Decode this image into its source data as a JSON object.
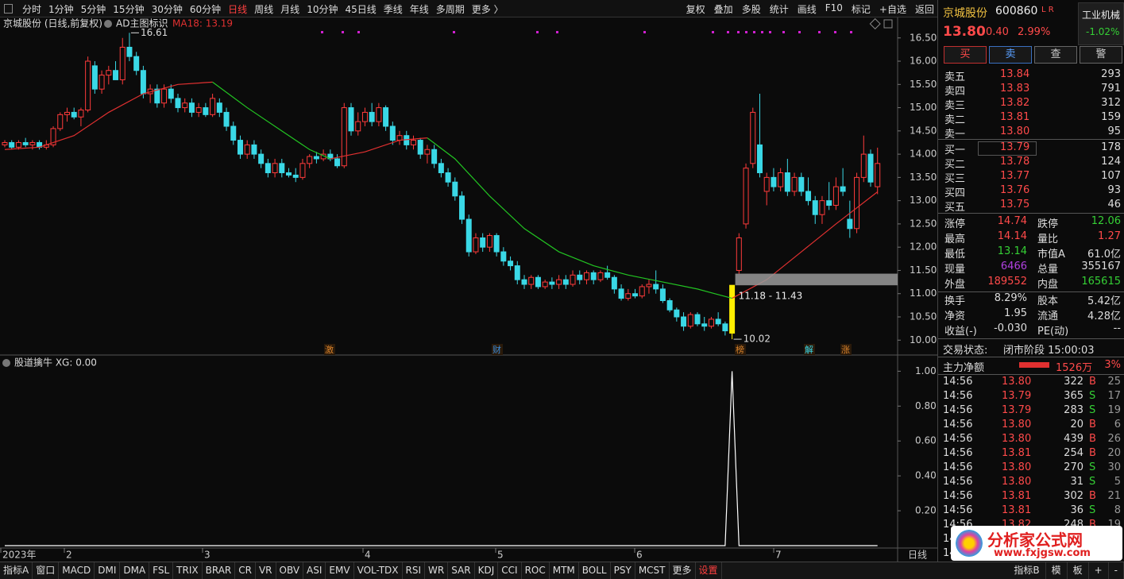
{
  "toolbar": {
    "left": [
      "分时",
      "1分钟",
      "5分钟",
      "15分钟",
      "30分钟",
      "60分钟",
      "日线",
      "周线",
      "月线",
      "10分钟",
      "45日线",
      "季线",
      "年线",
      "多周期",
      "更多 〉"
    ],
    "active": 6,
    "right": [
      "复权",
      "叠加",
      "多股",
      "统计",
      "画线",
      "F10",
      "标记",
      "+自选",
      "返回"
    ]
  },
  "main_chart": {
    "type": "candlestick",
    "title": "京城股份 (日线,前复权)",
    "indicator": "AD主图标识",
    "ma_label": "MA18: 13.19",
    "up_color": "#ff3b3b",
    "down_color": "#3ad8e6",
    "highlight_index": 105,
    "highlight_color": "#ffee00",
    "candles": [
      [
        14.2,
        14.3,
        14.15,
        14.25
      ],
      [
        14.25,
        14.3,
        14.1,
        14.15
      ],
      [
        14.15,
        14.3,
        14.1,
        14.25
      ],
      [
        14.25,
        14.35,
        14.15,
        14.2
      ],
      [
        14.2,
        14.3,
        14.1,
        14.25
      ],
      [
        14.25,
        14.3,
        14.1,
        14.15
      ],
      [
        14.15,
        14.3,
        14.1,
        14.2
      ],
      [
        14.2,
        14.6,
        14.15,
        14.55
      ],
      [
        14.55,
        14.9,
        14.5,
        14.85
      ],
      [
        14.85,
        15.0,
        14.7,
        14.9
      ],
      [
        14.9,
        15.0,
        14.75,
        14.8
      ],
      [
        14.8,
        15.0,
        14.6,
        14.95
      ],
      [
        14.95,
        16.1,
        14.9,
        16.0
      ],
      [
        15.9,
        16.0,
        15.3,
        15.4
      ],
      [
        15.4,
        15.8,
        15.3,
        15.7
      ],
      [
        15.7,
        15.9,
        15.5,
        15.8
      ],
      [
        15.8,
        16.0,
        15.6,
        15.6
      ],
      [
        15.6,
        16.5,
        15.5,
        16.3
      ],
      [
        16.3,
        16.61,
        16.0,
        16.1
      ],
      [
        16.1,
        16.2,
        15.7,
        15.8
      ],
      [
        15.8,
        15.9,
        15.2,
        15.3
      ],
      [
        15.3,
        15.5,
        15.1,
        15.4
      ],
      [
        15.4,
        15.5,
        15.0,
        15.1
      ],
      [
        15.1,
        15.5,
        15.0,
        15.4
      ],
      [
        15.4,
        15.5,
        15.1,
        15.2
      ],
      [
        15.2,
        15.3,
        14.9,
        15.0
      ],
      [
        15.0,
        15.2,
        14.9,
        15.1
      ],
      [
        15.1,
        15.2,
        14.8,
        14.9
      ],
      [
        14.9,
        15.1,
        14.8,
        15.0
      ],
      [
        15.0,
        15.1,
        14.8,
        14.85
      ],
      [
        14.85,
        15.3,
        14.8,
        15.2
      ],
      [
        15.1,
        15.2,
        14.8,
        14.9
      ],
      [
        14.9,
        15.0,
        14.5,
        14.6
      ],
      [
        14.6,
        14.7,
        14.2,
        14.3
      ],
      [
        14.3,
        14.4,
        13.9,
        14.0
      ],
      [
        14.0,
        14.3,
        13.9,
        14.2
      ],
      [
        14.2,
        14.3,
        13.9,
        14.0
      ],
      [
        14.0,
        14.1,
        13.7,
        13.8
      ],
      [
        13.8,
        13.9,
        13.5,
        13.6
      ],
      [
        13.6,
        13.9,
        13.5,
        13.8
      ],
      [
        13.8,
        13.9,
        13.5,
        13.6
      ],
      [
        13.6,
        13.7,
        13.5,
        13.55
      ],
      [
        13.55,
        13.7,
        13.4,
        13.5
      ],
      [
        13.5,
        13.9,
        13.45,
        13.8
      ],
      [
        13.8,
        14.0,
        13.7,
        13.95
      ],
      [
        13.95,
        14.05,
        13.8,
        13.9
      ],
      [
        13.9,
        14.1,
        13.85,
        14.0
      ],
      [
        14.0,
        14.1,
        13.85,
        13.9
      ],
      [
        13.9,
        14.0,
        13.7,
        13.75
      ],
      [
        13.75,
        15.1,
        13.7,
        15.0
      ],
      [
        15.0,
        15.1,
        14.4,
        14.5
      ],
      [
        14.5,
        14.9,
        14.4,
        14.7
      ],
      [
        14.7,
        15.0,
        14.6,
        14.9
      ],
      [
        14.9,
        15.1,
        14.6,
        14.7
      ],
      [
        14.7,
        15.1,
        14.6,
        15.0
      ],
      [
        15.0,
        15.05,
        14.5,
        14.6
      ],
      [
        14.6,
        14.7,
        14.2,
        14.3
      ],
      [
        14.3,
        14.5,
        14.2,
        14.4
      ],
      [
        14.4,
        14.5,
        14.1,
        14.2
      ],
      [
        14.2,
        14.4,
        14.1,
        14.3
      ],
      [
        14.3,
        14.35,
        13.9,
        14.0
      ],
      [
        14.0,
        14.2,
        13.8,
        14.1
      ],
      [
        14.1,
        14.2,
        13.7,
        13.8
      ],
      [
        13.8,
        13.9,
        13.5,
        13.6
      ],
      [
        13.6,
        13.7,
        13.3,
        13.4
      ],
      [
        13.4,
        13.5,
        13.0,
        13.1
      ],
      [
        13.1,
        13.2,
        12.5,
        12.6
      ],
      [
        12.6,
        12.7,
        11.8,
        11.9
      ],
      [
        11.9,
        12.3,
        11.85,
        12.2
      ],
      [
        12.2,
        12.3,
        11.9,
        12.0
      ],
      [
        12.0,
        12.3,
        11.9,
        12.25
      ],
      [
        12.25,
        12.3,
        11.8,
        11.9
      ],
      [
        11.9,
        12.0,
        11.6,
        11.7
      ],
      [
        11.7,
        11.8,
        11.5,
        11.6
      ],
      [
        11.6,
        11.7,
        11.2,
        11.3
      ],
      [
        11.3,
        11.4,
        11.1,
        11.2
      ],
      [
        11.2,
        11.4,
        11.1,
        11.35
      ],
      [
        11.35,
        11.4,
        11.1,
        11.15
      ],
      [
        11.15,
        11.3,
        11.1,
        11.25
      ],
      [
        11.25,
        11.35,
        11.1,
        11.2
      ],
      [
        11.2,
        11.4,
        11.1,
        11.3
      ],
      [
        11.3,
        11.4,
        11.1,
        11.2
      ],
      [
        11.2,
        11.5,
        11.15,
        11.4
      ],
      [
        11.4,
        11.5,
        11.2,
        11.3
      ],
      [
        11.3,
        11.5,
        11.2,
        11.45
      ],
      [
        11.45,
        11.5,
        11.2,
        11.3
      ],
      [
        11.3,
        11.5,
        11.25,
        11.45
      ],
      [
        11.45,
        11.6,
        11.3,
        11.35
      ],
      [
        11.35,
        11.4,
        11.0,
        11.1
      ],
      [
        11.1,
        11.2,
        10.85,
        10.9
      ],
      [
        10.9,
        11.1,
        10.85,
        11.0
      ],
      [
        11.0,
        11.1,
        10.9,
        10.95
      ],
      [
        10.95,
        11.2,
        10.9,
        11.15
      ],
      [
        11.15,
        11.3,
        11.0,
        11.2
      ],
      [
        11.2,
        11.5,
        11.0,
        11.1
      ],
      [
        11.1,
        11.2,
        10.8,
        10.85
      ],
      [
        10.85,
        10.9,
        10.6,
        10.65
      ],
      [
        10.65,
        10.7,
        10.4,
        10.5
      ],
      [
        10.5,
        10.6,
        10.2,
        10.3
      ],
      [
        10.3,
        10.6,
        10.25,
        10.55
      ],
      [
        10.55,
        10.6,
        10.3,
        10.35
      ],
      [
        10.35,
        10.5,
        10.2,
        10.3
      ],
      [
        10.3,
        10.5,
        10.25,
        10.45
      ],
      [
        10.45,
        10.6,
        10.3,
        10.35
      ],
      [
        10.35,
        10.4,
        10.1,
        10.2
      ],
      [
        10.15,
        11.18,
        10.02,
        11.18
      ],
      [
        11.5,
        12.3,
        11.43,
        12.2
      ],
      [
        12.5,
        13.8,
        12.4,
        13.7
      ],
      [
        13.8,
        15.0,
        13.7,
        14.9
      ],
      [
        14.2,
        15.3,
        13.5,
        13.6
      ],
      [
        13.2,
        13.6,
        12.9,
        13.5
      ],
      [
        13.5,
        13.7,
        13.2,
        13.3
      ],
      [
        13.3,
        13.7,
        13.2,
        13.6
      ],
      [
        13.6,
        13.9,
        13.1,
        13.2
      ],
      [
        13.2,
        13.6,
        13.1,
        13.5
      ],
      [
        13.5,
        13.6,
        13.1,
        13.2
      ],
      [
        13.2,
        13.5,
        12.9,
        13.0
      ],
      [
        13.0,
        13.1,
        12.5,
        12.7
      ],
      [
        12.7,
        13.1,
        12.5,
        13.0
      ],
      [
        13.0,
        13.4,
        12.8,
        12.9
      ],
      [
        12.9,
        13.5,
        12.8,
        13.3
      ],
      [
        13.3,
        13.7,
        13.1,
        13.2
      ],
      [
        12.6,
        13.0,
        12.2,
        12.4
      ],
      [
        12.4,
        13.6,
        12.3,
        13.5
      ],
      [
        13.5,
        14.4,
        13.4,
        14.0
      ],
      [
        14.0,
        14.1,
        13.3,
        13.4
      ],
      [
        13.3,
        14.14,
        13.14,
        13.8
      ]
    ],
    "ma": {
      "x": [
        0,
        5,
        10,
        15,
        20,
        25,
        30,
        35,
        40,
        44,
        47,
        52,
        57,
        61,
        65,
        70,
        75,
        80,
        85,
        90,
        95,
        100,
        105,
        110,
        115,
        120,
        126
      ],
      "series": [
        {
          "color": "#e03030",
          "values": [
            14.1,
            14.15,
            14.4,
            14.9,
            15.3,
            15.5,
            15.55,
            null,
            null,
            null,
            13.9,
            14.05,
            14.3,
            14.35,
            null,
            null,
            null,
            null,
            null,
            null,
            null,
            null,
            10.9,
            11.3,
            11.9,
            12.5,
            13.19
          ]
        },
        {
          "color": "#22c422",
          "values": [
            null,
            null,
            null,
            null,
            null,
            null,
            15.55,
            15.0,
            14.5,
            14.1,
            13.9,
            null,
            null,
            14.35,
            13.9,
            13.1,
            12.4,
            11.9,
            11.6,
            11.4,
            11.25,
            11.1,
            10.9,
            null,
            null,
            null,
            null
          ]
        }
      ]
    },
    "ylim": [
      9.68,
      16.94
    ],
    "yticks": [
      {
        "value": 16.5,
        "label": "16.50"
      },
      {
        "value": 16,
        "label": "16.00"
      },
      {
        "value": 15.5,
        "label": "15.50"
      },
      {
        "value": 15,
        "label": "15.00"
      },
      {
        "value": 14.5,
        "label": "14.50"
      },
      {
        "value": 14,
        "label": "14.00"
      },
      {
        "value": 13.5,
        "label": "13.50"
      },
      {
        "value": 13,
        "label": "13.00"
      },
      {
        "value": 12.5,
        "label": "12.50"
      },
      {
        "value": 12,
        "label": "12.00"
      },
      {
        "value": 11.5,
        "label": "11.50"
      },
      {
        "value": 11,
        "label": "11.00"
      },
      {
        "value": 10.5,
        "label": "10.50"
      },
      {
        "value": 10,
        "label": "10.00"
      }
    ],
    "annotations": [
      {
        "index": 18,
        "value": 16.61
      },
      {
        "index": 105,
        "value": 10.02
      }
    ],
    "gap": {
      "label": "11.18 - 11.43",
      "low": 11.18,
      "high": 11.43
    },
    "events": [
      "激",
      "财",
      "榜",
      "解",
      "涨"
    ]
  },
  "sub_chart": {
    "type": "line",
    "title": "股道擒牛 XG: 0.00",
    "color": "#ffffff",
    "x": [
      0,
      104,
      105,
      106,
      126
    ],
    "values": [
      0,
      0,
      1,
      0,
      0
    ],
    "ylim": [
      0,
      1.07
    ],
    "yticks": [
      {
        "value": 1,
        "label": "1.00"
      },
      {
        "value": 0.8,
        "label": "0.80"
      },
      {
        "value": 0.6,
        "label": "0.60"
      },
      {
        "value": 0.4,
        "label": "0.40"
      },
      {
        "value": 0.2,
        "label": "0.20"
      }
    ]
  },
  "date_axis": {
    "labels": [
      "2023年",
      "2",
      "3",
      "4",
      "5",
      "6",
      "7"
    ],
    "period": "日线"
  },
  "bottom_tabs": {
    "left": [
      "指标A",
      "窗口",
      "MACD",
      "DMI",
      "DMA",
      "FSL",
      "TRIX",
      "BRAR",
      "CR",
      "VR",
      "OBV",
      "ASI",
      "EMV",
      "VOL-TDX",
      "RSI",
      "WR",
      "SAR",
      "KDJ",
      "CCI",
      "ROC",
      "MTM",
      "BOLL",
      "PSY",
      "MCST",
      "更多",
      "设置"
    ],
    "active": 25,
    "right": [
      "指标B",
      "模",
      "板",
      "+",
      "-"
    ]
  },
  "quote": {
    "name": "京城股份",
    "code": "600860",
    "tags": "L R",
    "industry": "工业机械",
    "industry_change": "-1.02%",
    "price": "13.80",
    "change": "0.40",
    "change_pct": "2.99%",
    "buttons": [
      "买",
      "卖",
      "查",
      "警"
    ],
    "asks": [
      [
        "卖五",
        "13.84",
        "293"
      ],
      [
        "卖四",
        "13.83",
        "791"
      ],
      [
        "卖三",
        "13.82",
        "312"
      ],
      [
        "卖二",
        "13.81",
        "159"
      ],
      [
        "卖一",
        "13.80",
        "95"
      ]
    ],
    "bids": [
      [
        "买一",
        "13.79",
        "178"
      ],
      [
        "买二",
        "13.78",
        "124"
      ],
      [
        "买三",
        "13.77",
        "107"
      ],
      [
        "买四",
        "13.76",
        "93"
      ],
      [
        "买五",
        "13.75",
        "46"
      ]
    ],
    "stats": [
      [
        "涨停",
        "14.74",
        "跌停",
        "12.06"
      ],
      [
        "最高",
        "14.14",
        "量比",
        "1.27"
      ],
      [
        "最低",
        "13.14",
        "市值A",
        "61.0亿"
      ],
      [
        "现量",
        "6466",
        "总量",
        "355167"
      ],
      [
        "外盘",
        "189552",
        "内盘",
        "165615"
      ],
      [
        "换手",
        "8.29%",
        "股本",
        "5.42亿"
      ],
      [
        "净资",
        "1.95",
        "流通",
        "4.28亿"
      ],
      [
        "收益(-)",
        "-0.030",
        "PE(动)",
        "--"
      ]
    ],
    "status_label": "交易状态:",
    "status": "闭市阶段 15:00:03",
    "flow_label": "主力净额",
    "flow": "1526万",
    "flow_pct": "3%",
    "ticks": [
      [
        "14:56",
        "13.80",
        "322",
        "B",
        "25"
      ],
      [
        "14:56",
        "13.79",
        "365",
        "S",
        "17"
      ],
      [
        "14:56",
        "13.79",
        "283",
        "S",
        "19"
      ],
      [
        "14:56",
        "13.80",
        "20",
        "B",
        "6"
      ],
      [
        "14:56",
        "13.80",
        "439",
        "B",
        "26"
      ],
      [
        "14:56",
        "13.81",
        "254",
        "B",
        "20"
      ],
      [
        "14:56",
        "13.80",
        "270",
        "S",
        "30"
      ],
      [
        "14:56",
        "13.80",
        "31",
        "S",
        "5"
      ],
      [
        "14:56",
        "13.81",
        "302",
        "B",
        "21"
      ],
      [
        "14:56",
        "13.81",
        "36",
        "S",
        "8"
      ],
      [
        "14:56",
        "13.82",
        "248",
        "B",
        "19"
      ]
    ],
    "partial_ticks": [
      "14",
      "14"
    ]
  },
  "watermark": {
    "title": "分析家公式网",
    "url": "www.fxjgsw.com"
  }
}
